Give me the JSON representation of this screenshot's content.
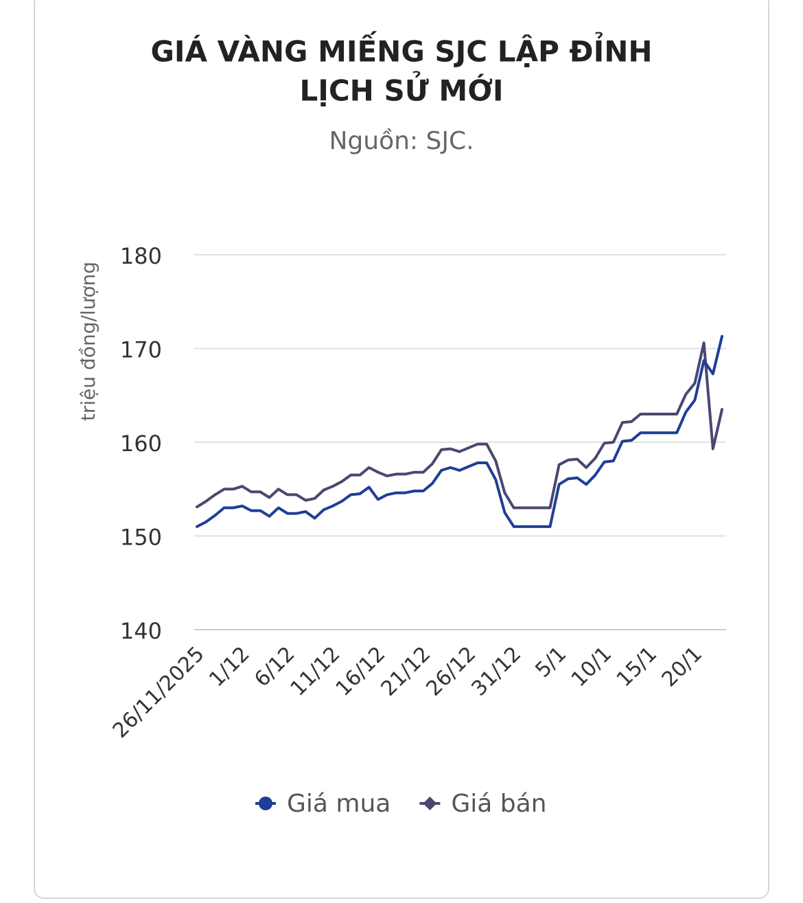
{
  "chart_data": {
    "type": "line",
    "title": "GIÁ VÀNG MIẾNG SJC LẬP ĐỈNH",
    "title_line2": "LỊCH SỬ MỚI",
    "subtitle": "Nguồn: SJC.",
    "y_label": "triệu đồng/lượng",
    "categories": [
      "26/11/2025",
      null,
      null,
      null,
      null,
      "1/12",
      null,
      null,
      null,
      null,
      "6/12",
      null,
      null,
      null,
      null,
      "11/12",
      null,
      null,
      null,
      null,
      "16/12",
      null,
      null,
      null,
      null,
      "21/12",
      null,
      null,
      null,
      null,
      "26/12",
      null,
      null,
      null,
      null,
      "31/12",
      null,
      null,
      null,
      null,
      "5/1",
      null,
      null,
      null,
      null,
      "10/1",
      null,
      null,
      null,
      null,
      "15/1",
      null,
      null,
      null,
      null,
      "20/1",
      null,
      null,
      null
    ],
    "series": [
      {
        "name": "Giá mua",
        "color": "#1f3e96",
        "marker": "circle",
        "values": [
          151,
          151.5,
          152.2,
          153,
          153,
          153.2,
          152.7,
          152.7,
          152.1,
          153,
          152.4,
          152.4,
          152.6,
          151.9,
          152.8,
          153.2,
          153.7,
          154.4,
          154.5,
          155.2,
          153.9,
          154.4,
          154.6,
          154.6,
          154.8,
          154.8,
          155.6,
          157,
          157.3,
          157,
          157.4,
          157.8,
          157.8,
          156,
          152.5,
          151,
          151,
          151,
          151,
          151,
          155.5,
          156.1,
          156.2,
          155.5,
          156.5,
          157.9,
          158,
          160.1,
          160.2,
          161,
          161,
          161,
          161,
          161,
          163.2,
          164.5,
          168.7,
          167.3,
          171.3
        ]
      },
      {
        "name": "Giá bán",
        "color": "#4a4870",
        "marker": "diamond",
        "values": [
          153.1,
          153.7,
          154.4,
          155,
          155,
          155.3,
          154.7,
          154.7,
          154.1,
          155,
          154.4,
          154.4,
          153.8,
          154,
          154.9,
          155.3,
          155.8,
          156.5,
          156.5,
          157.3,
          156.8,
          156.4,
          156.6,
          156.6,
          156.8,
          156.8,
          157.7,
          159.2,
          159.3,
          159,
          159.4,
          159.8,
          159.8,
          158,
          154.6,
          153,
          153,
          153,
          153,
          153,
          157.6,
          158.1,
          158.2,
          157.3,
          158.3,
          159.9,
          160,
          162.1,
          162.2,
          163,
          163,
          163,
          163,
          163,
          165.1,
          166.3,
          170.6,
          159.3,
          163.5
        ]
      }
    ],
    "ylim": [
      140,
      180
    ],
    "yticks": [
      140,
      150,
      160,
      170,
      180
    ],
    "grid": true,
    "legend": "bottom"
  }
}
